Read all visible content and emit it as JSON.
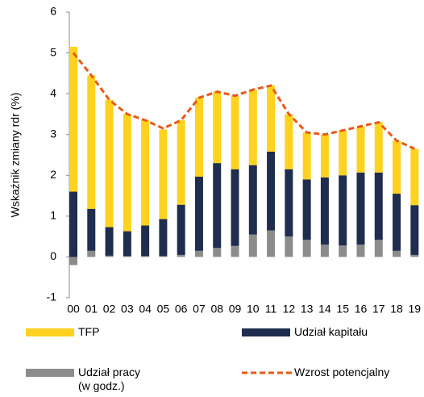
{
  "chart_data": {
    "type": "bar",
    "stacked": true,
    "y_label": "Wskaźnik zmiany rdr (%)",
    "categories": [
      "00",
      "01",
      "02",
      "03",
      "04",
      "05",
      "06",
      "07",
      "08",
      "09",
      "10",
      "11",
      "12",
      "13",
      "14",
      "15",
      "16",
      "17",
      "18",
      "19"
    ],
    "ylim": [
      -1,
      6
    ],
    "yticks": [
      -1,
      0,
      1,
      2,
      3,
      4,
      5,
      6
    ],
    "series": [
      {
        "name": "Udział pracy (w godz.)",
        "color": "#8c8c8c",
        "values": [
          -0.2,
          0.15,
          0.03,
          0.02,
          0.02,
          0.02,
          0.05,
          0.15,
          0.22,
          0.27,
          0.55,
          0.65,
          0.5,
          0.42,
          0.3,
          0.28,
          0.3,
          0.42,
          0.15,
          0.05
        ]
      },
      {
        "name": "Udział kapitału",
        "color": "#1f2d4e",
        "values": [
          1.6,
          1.03,
          0.7,
          0.61,
          0.75,
          0.91,
          1.23,
          1.82,
          2.08,
          1.88,
          1.7,
          1.93,
          1.65,
          1.48,
          1.65,
          1.72,
          1.77,
          1.65,
          1.4,
          1.22
        ]
      },
      {
        "name": "TFP",
        "color": "#ffd21f",
        "values": [
          3.55,
          3.27,
          3.12,
          2.87,
          2.58,
          2.19,
          2.07,
          1.93,
          1.75,
          1.8,
          1.85,
          1.62,
          1.35,
          1.15,
          1.05,
          1.1,
          1.13,
          1.23,
          1.3,
          1.38
        ]
      },
      {
        "name": "Wzrost potencjalny",
        "type": "line",
        "color": "#e8591a",
        "values": [
          5.0,
          4.45,
          3.85,
          3.5,
          3.35,
          3.15,
          3.35,
          3.9,
          4.05,
          3.95,
          4.1,
          4.2,
          3.5,
          3.05,
          3.0,
          3.1,
          3.2,
          3.3,
          2.85,
          2.65
        ]
      }
    ]
  }
}
